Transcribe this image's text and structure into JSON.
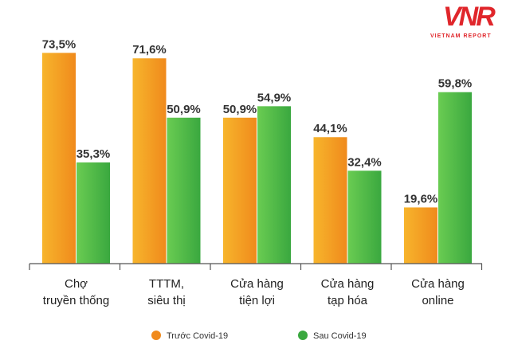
{
  "logo": {
    "mark": "VNR",
    "subtitle": "VIETNAM REPORT"
  },
  "chart_data": {
    "type": "bar",
    "categories": [
      [
        "Chợ",
        "truyền thống"
      ],
      [
        "TTTM,",
        "siêu thị"
      ],
      [
        "Cửa hàng",
        "tiện lợi"
      ],
      [
        "Cửa hàng",
        "tạp hóa"
      ],
      [
        "Cửa hàng",
        "online"
      ]
    ],
    "series": [
      {
        "name": "Trước Covid-19",
        "values": [
          73.5,
          71.6,
          50.9,
          44.1,
          19.6
        ],
        "labels": [
          "73,5%",
          "71,6%",
          "50,9%",
          "44,1%",
          "19,6%"
        ],
        "color": "#f39a1e"
      },
      {
        "name": "Sau Covid-19",
        "values": [
          35.3,
          50.9,
          54.9,
          32.4,
          59.8
        ],
        "labels": [
          "35,3%",
          "50,9%",
          "54,9%",
          "32,4%",
          "59,8%"
        ],
        "color": "#4cbb47"
      }
    ],
    "ylim": [
      0,
      80
    ],
    "grid": false,
    "legend": "bottom-center",
    "colors": {
      "orange_light": "#f7b52c",
      "orange_dark": "#f08a1c",
      "green_light": "#6acc52",
      "green_dark": "#3aa83f",
      "axis": "#555555"
    }
  }
}
